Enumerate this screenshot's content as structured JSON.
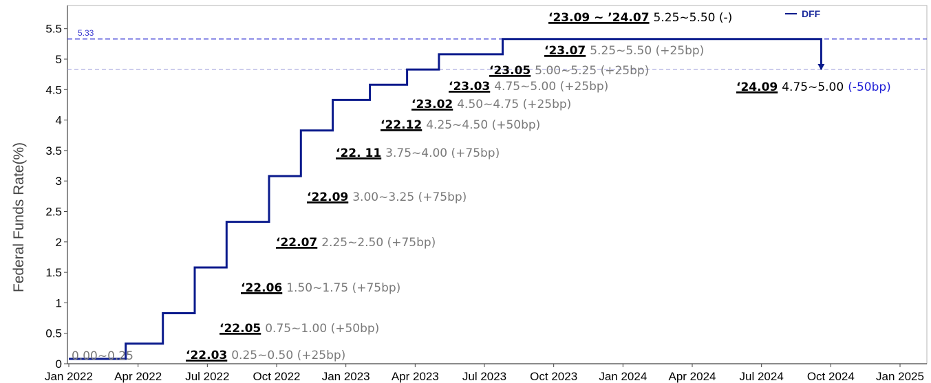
{
  "chart_data": {
    "type": "line",
    "ylabel": "Federal Funds Rate(%)",
    "xlabel": "",
    "ylim": [
      0,
      5.8
    ],
    "yticks": [
      "0",
      "0.5",
      "1",
      "1.5",
      "2",
      "2.5",
      "3",
      "3.5",
      "4",
      "4.5",
      "5",
      "5.5"
    ],
    "xticks": [
      "Jan 2022",
      "Apr 2022",
      "Jul 2022",
      "Oct 2022",
      "Jan 2023",
      "Apr 2023",
      "Jul 2023",
      "Oct 2023",
      "Jan 2024",
      "Apr 2024",
      "Jul 2024",
      "Oct 2024",
      "Jan 2025"
    ],
    "legend": {
      "label": "DFF",
      "position": "top-right"
    },
    "reference_line": {
      "value": 5.33,
      "label": "5.33"
    },
    "series": [
      {
        "name": "DFF",
        "color": "#0a1a8c",
        "points": [
          [
            "2022-01-01",
            0.08
          ],
          [
            "2022-03-17",
            0.08
          ],
          [
            "2022-03-17",
            0.33
          ],
          [
            "2022-05-05",
            0.33
          ],
          [
            "2022-05-05",
            0.83
          ],
          [
            "2022-06-16",
            0.83
          ],
          [
            "2022-06-16",
            1.58
          ],
          [
            "2022-07-28",
            1.58
          ],
          [
            "2022-07-28",
            2.33
          ],
          [
            "2022-09-22",
            2.33
          ],
          [
            "2022-09-22",
            3.08
          ],
          [
            "2022-11-03",
            3.08
          ],
          [
            "2022-11-03",
            3.83
          ],
          [
            "2022-12-15",
            3.83
          ],
          [
            "2022-12-15",
            4.33
          ],
          [
            "2023-02-02",
            4.33
          ],
          [
            "2023-02-02",
            4.58
          ],
          [
            "2023-03-23",
            4.58
          ],
          [
            "2023-03-23",
            4.83
          ],
          [
            "2023-05-04",
            4.83
          ],
          [
            "2023-05-04",
            5.08
          ],
          [
            "2023-07-27",
            5.08
          ],
          [
            "2023-07-27",
            5.33
          ],
          [
            "2024-09-19",
            5.33
          ],
          [
            "2024-09-19",
            4.83
          ]
        ]
      }
    ],
    "annotations": [
      {
        "date": "0.00~0.25",
        "range": "",
        "change": ""
      },
      {
        "date": "‘22.03",
        "range": "0.25~0.50 (+25bp)"
      },
      {
        "date": "‘22.05",
        "range": "0.75~1.00 (+50bp)"
      },
      {
        "date": "‘22.06",
        "range": "1.50~1.75 (+75bp)"
      },
      {
        "date": "‘22.07",
        "range": "2.25~2.50 (+75bp)"
      },
      {
        "date": "‘22.09",
        "range": "3.00~3.25 (+75bp)"
      },
      {
        "date": "‘22. 11",
        "range": "3.75~4.00 (+75bp)"
      },
      {
        "date": "‘22.12",
        "range": "4.25~4.50 (+50bp)"
      },
      {
        "date": "‘23.02",
        "range": "4.50~4.75 (+25bp)"
      },
      {
        "date": "‘23.03",
        "range": "4.75~5.00 (+25bp)"
      },
      {
        "date": "‘23.05",
        "range": "5.00~5.25 (+25bp)"
      },
      {
        "date": "‘23.07",
        "range": "5.25~5.50 (+25bp)"
      },
      {
        "date": "‘23.09 ~ ’24.07",
        "range": "5.25~5.50 (-)"
      },
      {
        "date": "‘24.09",
        "range": "4.75~5.00",
        "change": "(-50bp)"
      }
    ]
  }
}
